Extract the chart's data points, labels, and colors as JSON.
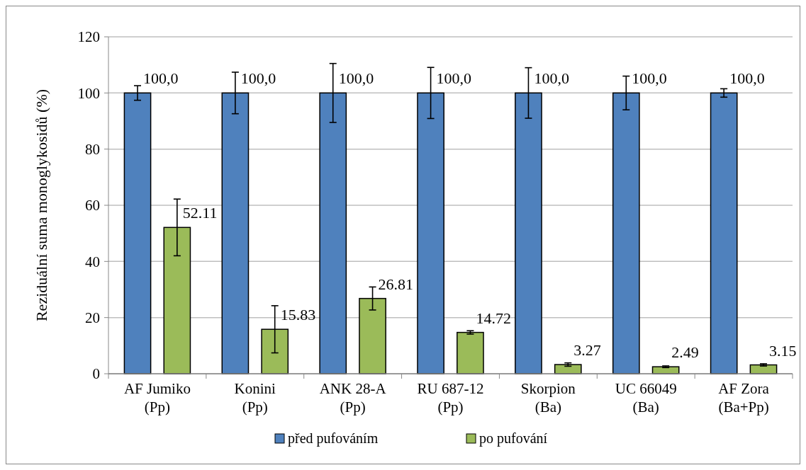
{
  "chart_data": {
    "type": "bar",
    "ylabel": "Reziduální suma monoglykosidů (%)",
    "categories": [
      "AF Jumiko (Pp)",
      "Konini (Pp)",
      "ANK 28-A (Pp)",
      "RU 687-12 (Pp)",
      "Skorpion (Ba)",
      "UC 66049 (Ba)",
      "AF Zora (Ba+Pp)"
    ],
    "series": [
      {
        "name": "před pufováním",
        "color": "#4f81bd",
        "values": [
          100,
          100,
          100,
          100,
          100,
          100,
          100
        ],
        "errors": [
          2.6,
          7.4,
          10.5,
          9.1,
          9,
          6,
          1.5
        ],
        "value_labels": [
          "100,0",
          "100,0",
          "100,0",
          "100,0",
          "100,0",
          "100,0",
          "100,0"
        ]
      },
      {
        "name": "po pufování",
        "color": "#9bbb59",
        "values": [
          52.11,
          15.83,
          26.81,
          14.72,
          3.27,
          2.49,
          3.15
        ],
        "errors": [
          10.1,
          8.4,
          4.1,
          0.6,
          0.6,
          0.3,
          0.4
        ],
        "value_labels": [
          "52.11",
          "15.83",
          "26.81",
          "14.72",
          "3.27",
          "2.49",
          "3.15"
        ]
      }
    ],
    "ylim": [
      0,
      120
    ],
    "yticks": [
      0,
      20,
      40,
      60,
      80,
      100,
      120
    ],
    "grid": "y",
    "legend": "bottom"
  }
}
